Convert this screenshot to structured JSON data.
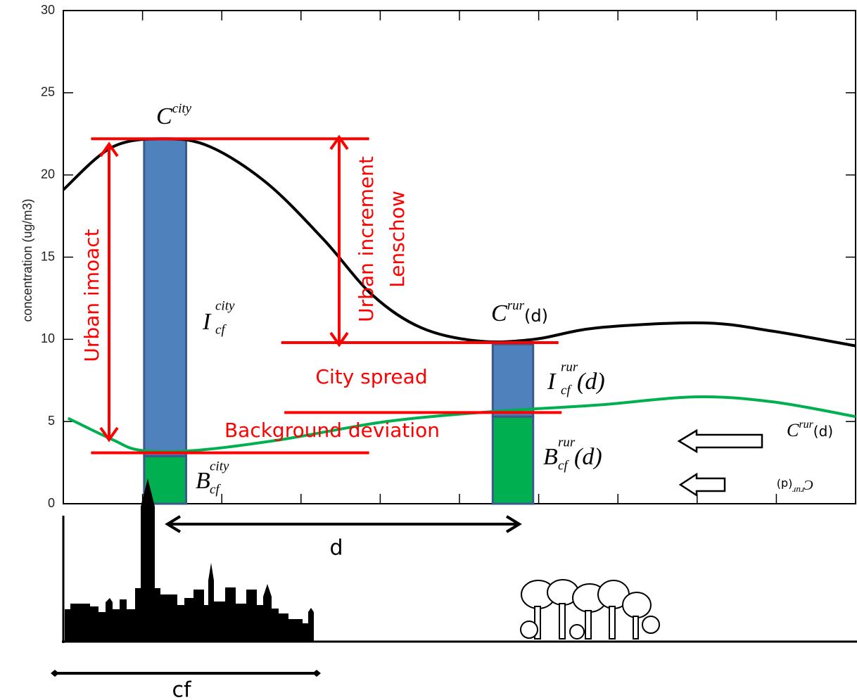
{
  "chart_data": {
    "type": "line",
    "ylabel": "concentration (ug/m3)",
    "ylim": [
      0,
      30
    ],
    "yticks": [
      0,
      5,
      10,
      15,
      20,
      25,
      30
    ],
    "xlim": [
      0,
      100
    ],
    "xticks": [
      0,
      10,
      20,
      30,
      40,
      50,
      60,
      70,
      80,
      90,
      100
    ],
    "series": [
      {
        "color": "#000000",
        "x": [
          0,
          6.2,
          12.9,
          18.6,
          25.7,
          32.8,
          39.0,
          45.2,
          52.3,
          59.4,
          67.4,
          80.7,
          89.5,
          100
        ],
        "values": [
          19.1,
          21.7,
          22.2,
          21.7,
          19.5,
          16.1,
          12.7,
          10.7,
          9.9,
          10.0,
          10.7,
          11.0,
          10.5,
          9.6
        ]
      },
      {
        "color": "#00b050",
        "x": [
          0.6,
          6.2,
          9.8,
          16.8,
          27.5,
          40.8,
          54.1,
          67.4,
          79.8,
          89.5,
          100
        ],
        "values": [
          5.2,
          3.9,
          3.25,
          3.25,
          3.9,
          5.0,
          5.6,
          6.0,
          6.5,
          6.2,
          5.3
        ]
      }
    ],
    "bars": [
      {
        "x0": 10.2,
        "x1": 15.5,
        "background": 2.9,
        "increment": 19.3
      },
      {
        "x0": 54.2,
        "x1": 59.3,
        "background": 5.3,
        "increment": 4.4
      }
    ],
    "bar_colors": {
      "increment": "#4f81bd",
      "background": "#00b050"
    },
    "reference_lines": [
      {
        "y": 22.2,
        "x0": 3.5,
        "x1": 38.6
      },
      {
        "y": 9.8,
        "x0": 27.5,
        "x1": 62.5
      },
      {
        "y": 5.55,
        "x0": 27.9,
        "x1": 62.9
      },
      {
        "y": 3.1,
        "x0": 3.5,
        "x1": 38.6
      }
    ],
    "reference_color": "#ff0000",
    "annotations": [
      "Urban imoact",
      "Urban increment",
      "Lenschow",
      "City spread",
      "Background deviation",
      "d",
      "cf"
    ],
    "math_labels": [
      {
        "base": "C",
        "sup": "city"
      },
      {
        "base": "I",
        "sup": "city",
        "sub": "cf"
      },
      {
        "base": "B",
        "sup": "city",
        "sub": "cf"
      },
      {
        "base": "C",
        "sup": "rur",
        "arg": "(d)"
      },
      {
        "base": "I",
        "sup": "rur",
        "sub": "cf",
        "arg": "(d)"
      },
      {
        "base": "B",
        "sup": "rur",
        "sub": "cf",
        "arg": "(d)"
      },
      {
        "base": "C",
        "sup": "rur",
        "arg": "(d)"
      },
      {
        "base": "C",
        "sup": "rur",
        "arg": "(d)"
      }
    ]
  }
}
